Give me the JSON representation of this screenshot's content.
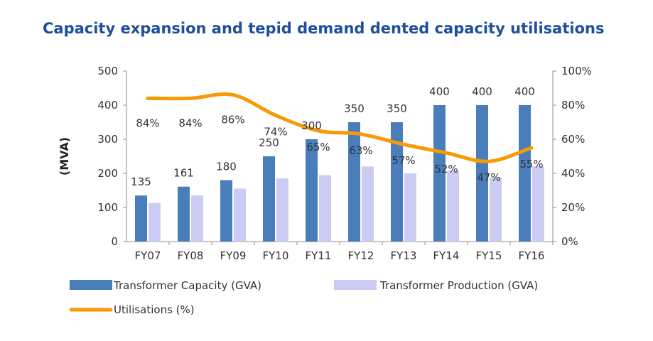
{
  "title": "Capacity expansion and tepid demand dented capacity utilisations",
  "colors": {
    "title": "#1f4e9c",
    "capacity": "#4a7ebb",
    "production": "#ccccf2",
    "utilisation": "#f79a06",
    "axis": "#8c8c8c",
    "text": "#333333"
  },
  "chart_data": {
    "type": "bar",
    "categories": [
      "FY07",
      "FY08",
      "FY09",
      "FY10",
      "FY11",
      "FY12",
      "FY13",
      "FY14",
      "FY15",
      "FY16"
    ],
    "ylabel": "(MVA)",
    "ylim": [
      0,
      500
    ],
    "yticks": [
      "0",
      "100",
      "200",
      "300",
      "400",
      "500"
    ],
    "y2lim": [
      0,
      100
    ],
    "y2ticks": [
      "0%",
      "20%",
      "40%",
      "60%",
      "80%",
      "100%"
    ],
    "grid": false,
    "legend_position": "bottom",
    "series": [
      {
        "name": "Transformer Capacity (GVA)",
        "type": "bar",
        "axis": "left",
        "values": [
          135,
          161,
          180,
          250,
          300,
          350,
          350,
          400,
          400,
          400
        ],
        "labels": [
          "135",
          "161",
          "180",
          "250",
          "300",
          "350",
          "350",
          "400",
          "400",
          "400"
        ]
      },
      {
        "name": "Transformer Production (GVA)",
        "type": "bar",
        "axis": "left",
        "values": [
          113,
          135,
          155,
          185,
          195,
          220,
          200,
          208,
          188,
          220
        ]
      },
      {
        "name": "Utilisations (%)",
        "type": "line",
        "axis": "right",
        "values": [
          84,
          84,
          86,
          74,
          65,
          63,
          57,
          52,
          47,
          55
        ],
        "labels": [
          "84%",
          "84%",
          "86%",
          "74%",
          "65%",
          "63%",
          "57%",
          "52%",
          "47%",
          "55%"
        ]
      }
    ]
  }
}
